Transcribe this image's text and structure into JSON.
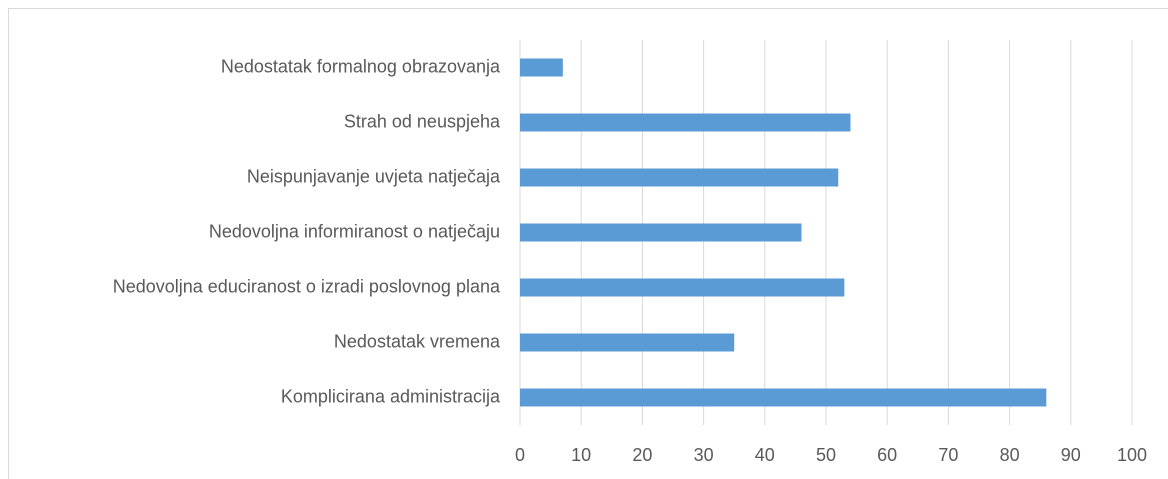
{
  "chart_data": {
    "type": "bar",
    "orientation": "horizontal",
    "categories": [
      "Nedostatak formalnog obrazovanja",
      "Strah od neuspjeha",
      "Neispunjavanje uvjeta natječaja",
      "Nedovoljna informiranost o natječaju",
      "Nedovoljna educiranost o izradi poslovnog plana",
      "Nedostatak vremena",
      "Komplicirana administracija"
    ],
    "values": [
      7,
      54,
      52,
      46,
      53,
      35,
      86
    ],
    "color": "#5b9bd5",
    "xlim": [
      0,
      100
    ],
    "xticks": [
      0,
      10,
      20,
      30,
      40,
      50,
      60,
      70,
      80,
      90,
      100
    ],
    "grid": true
  }
}
